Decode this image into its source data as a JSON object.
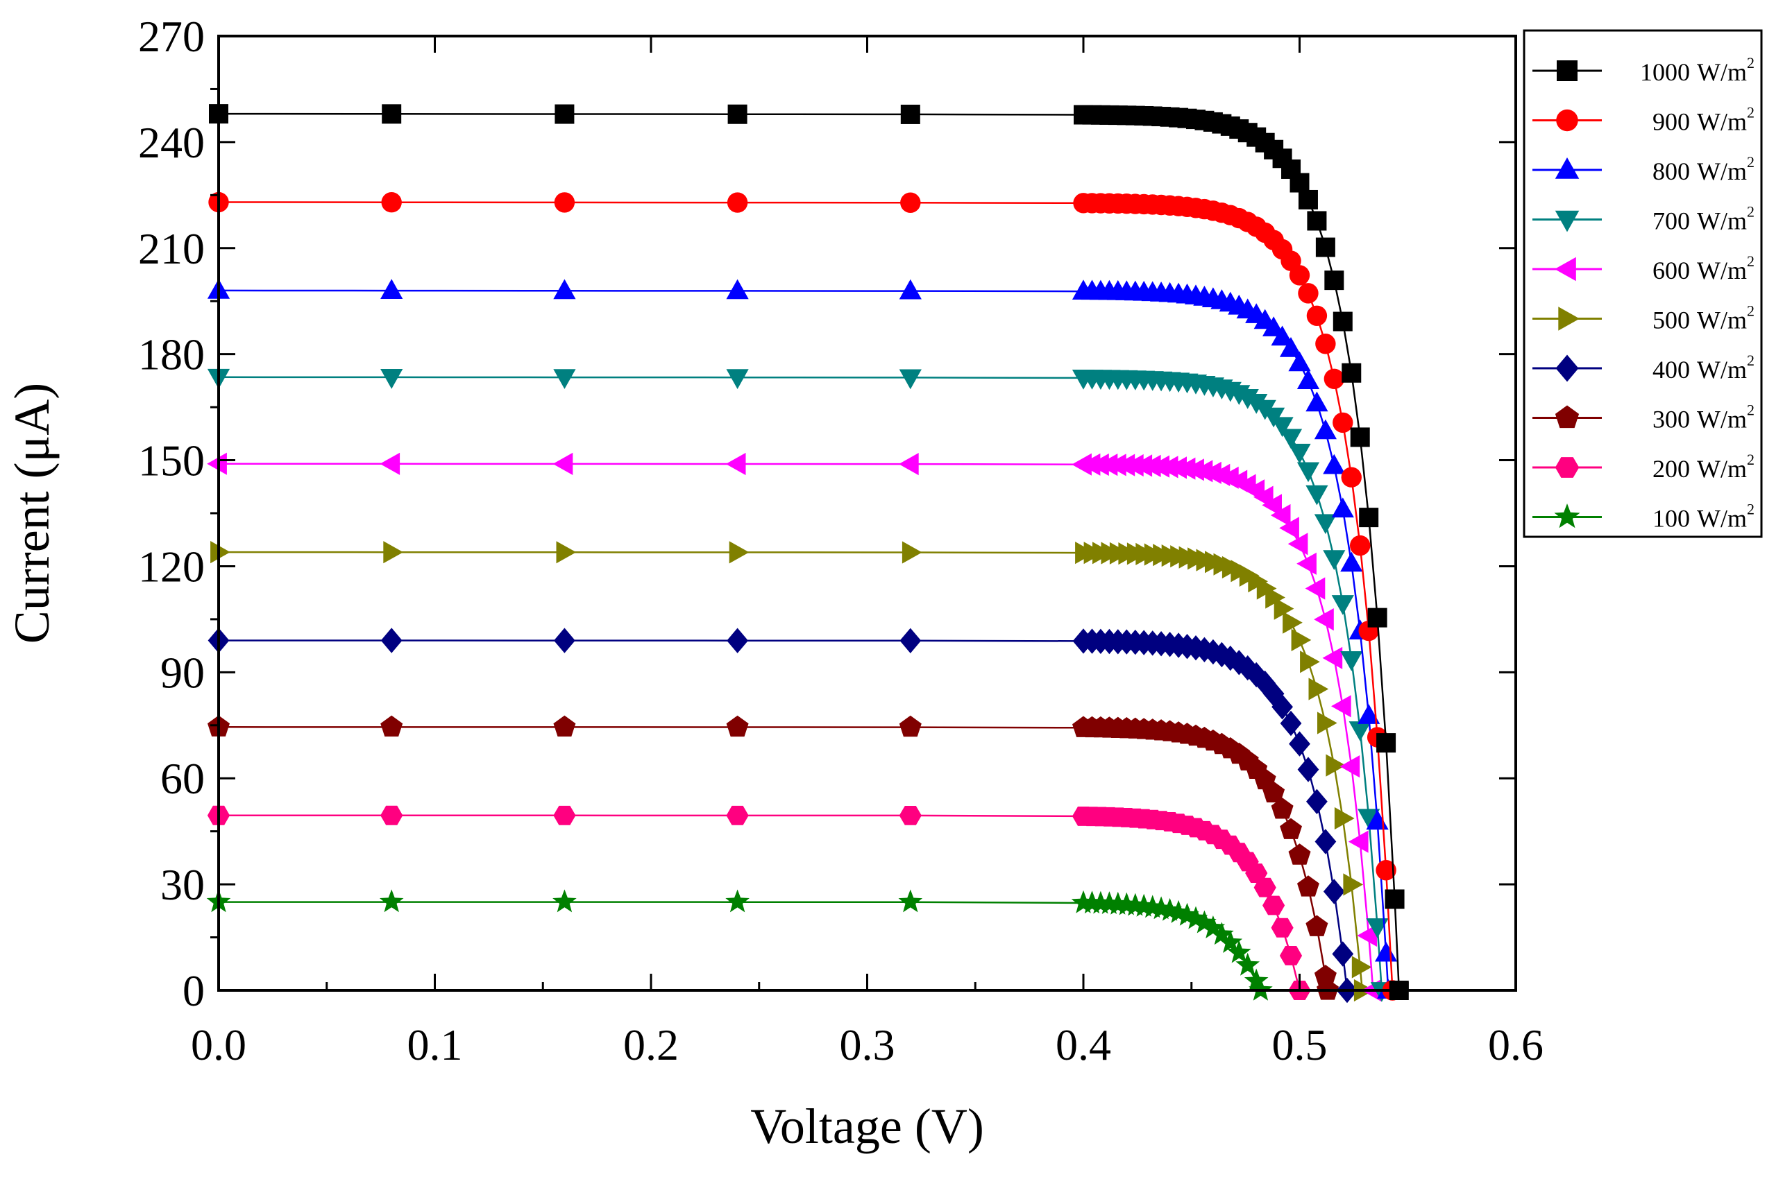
{
  "chart_data": {
    "type": "line",
    "title": "",
    "xlabel": "Voltage (V)",
    "ylabel": "Current (μA)",
    "xlim": [
      0.0,
      0.6
    ],
    "ylim": [
      0,
      270
    ],
    "x_ticks": [
      "0.0",
      "0.1",
      "0.2",
      "0.3",
      "0.4",
      "0.5",
      "0.6"
    ],
    "y_ticks": [
      "0",
      "30",
      "60",
      "90",
      "120",
      "150",
      "180",
      "210",
      "240",
      "270"
    ],
    "grid": false,
    "legend_position": "top-right",
    "legend_unit": "W/m",
    "legend_sup": "2",
    "series": [
      {
        "name": "1000",
        "color": "#000000",
        "marker": "square",
        "isc": 248,
        "voc": 0.546
      },
      {
        "name": "900",
        "color": "#ff0000",
        "marker": "circle",
        "isc": 223,
        "voc": 0.543
      },
      {
        "name": "800",
        "color": "#0000ff",
        "marker": "triangle-up",
        "isc": 198,
        "voc": 0.541
      },
      {
        "name": "700",
        "color": "#008080",
        "marker": "triangle-down",
        "isc": 173.5,
        "voc": 0.538
      },
      {
        "name": "600",
        "color": "#ff00ff",
        "marker": "triangle-left",
        "isc": 149,
        "voc": 0.534
      },
      {
        "name": "500",
        "color": "#808000",
        "marker": "triangle-right",
        "isc": 124,
        "voc": 0.529
      },
      {
        "name": "400",
        "color": "#000080",
        "marker": "diamond",
        "isc": 99,
        "voc": 0.522
      },
      {
        "name": "300",
        "color": "#800000",
        "marker": "pentagon",
        "isc": 74.5,
        "voc": 0.513
      },
      {
        "name": "200",
        "color": "#ff0080",
        "marker": "hexagon",
        "isc": 49.5,
        "voc": 0.5
      },
      {
        "name": "100",
        "color": "#008000",
        "marker": "star",
        "isc": 25,
        "voc": 0.482
      }
    ],
    "sample_voltages_low": [
      0.0,
      0.08,
      0.16,
      0.24,
      0.32
    ],
    "dense_start_voltage": 0.4,
    "dense_step": 0.004
  }
}
